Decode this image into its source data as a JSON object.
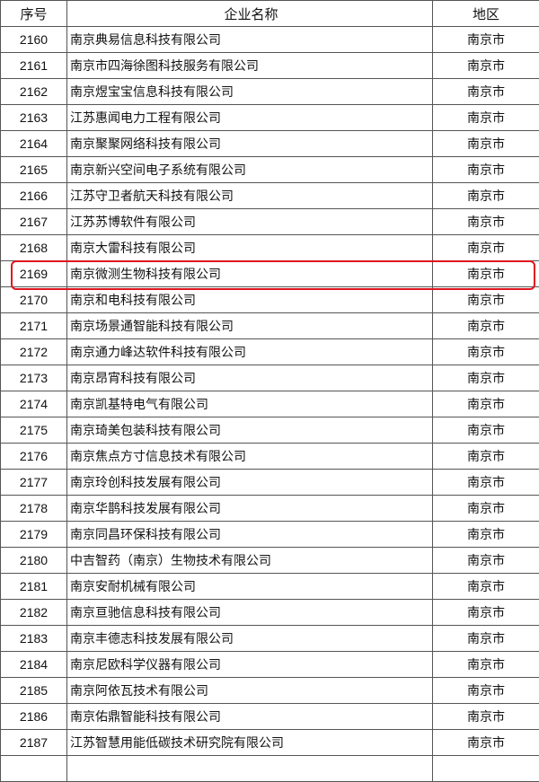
{
  "headers": {
    "no": "序号",
    "name": "企业名称",
    "region": "地区"
  },
  "highlight_color": "#e0141e",
  "highlighted_no": "2169",
  "rows": [
    {
      "no": "2160",
      "name": "南京典易信息科技有限公司",
      "region": "南京市"
    },
    {
      "no": "2161",
      "name": "南京市四海徐图科技服务有限公司",
      "region": "南京市"
    },
    {
      "no": "2162",
      "name": "南京煜宝宝信息科技有限公司",
      "region": "南京市"
    },
    {
      "no": "2163",
      "name": "江苏惠闻电力工程有限公司",
      "region": "南京市"
    },
    {
      "no": "2164",
      "name": "南京聚聚网络科技有限公司",
      "region": "南京市"
    },
    {
      "no": "2165",
      "name": "南京新兴空间电子系统有限公司",
      "region": "南京市"
    },
    {
      "no": "2166",
      "name": "江苏守卫者航天科技有限公司",
      "region": "南京市"
    },
    {
      "no": "2167",
      "name": "江苏苏博软件有限公司",
      "region": "南京市"
    },
    {
      "no": "2168",
      "name": "南京大雷科技有限公司",
      "region": "南京市"
    },
    {
      "no": "2169",
      "name": "南京微测生物科技有限公司",
      "region": "南京市"
    },
    {
      "no": "2170",
      "name": "南京和电科技有限公司",
      "region": "南京市"
    },
    {
      "no": "2171",
      "name": "南京场景通智能科技有限公司",
      "region": "南京市"
    },
    {
      "no": "2172",
      "name": "南京通力峰达软件科技有限公司",
      "region": "南京市"
    },
    {
      "no": "2173",
      "name": "南京昂宵科技有限公司",
      "region": "南京市"
    },
    {
      "no": "2174",
      "name": "南京凯基特电气有限公司",
      "region": "南京市"
    },
    {
      "no": "2175",
      "name": "南京琦美包装科技有限公司",
      "region": "南京市"
    },
    {
      "no": "2176",
      "name": "南京焦点方寸信息技术有限公司",
      "region": "南京市"
    },
    {
      "no": "2177",
      "name": "南京玲创科技发展有限公司",
      "region": "南京市"
    },
    {
      "no": "2178",
      "name": "南京华鹊科技发展有限公司",
      "region": "南京市"
    },
    {
      "no": "2179",
      "name": "南京同昌环保科技有限公司",
      "region": "南京市"
    },
    {
      "no": "2180",
      "name": "中吉智药（南京）生物技术有限公司",
      "region": "南京市"
    },
    {
      "no": "2181",
      "name": "南京安耐机械有限公司",
      "region": "南京市"
    },
    {
      "no": "2182",
      "name": "南京亘驰信息科技有限公司",
      "region": "南京市"
    },
    {
      "no": "2183",
      "name": "南京丰德志科技发展有限公司",
      "region": "南京市"
    },
    {
      "no": "2184",
      "name": "南京尼欧科学仪器有限公司",
      "region": "南京市"
    },
    {
      "no": "2185",
      "name": "南京阿依瓦技术有限公司",
      "region": "南京市"
    },
    {
      "no": "2186",
      "name": "南京佑鼎智能科技有限公司",
      "region": "南京市"
    },
    {
      "no": "2187",
      "name": "江苏智慧用能低碳技术研究院有限公司",
      "region": "南京市"
    }
  ]
}
